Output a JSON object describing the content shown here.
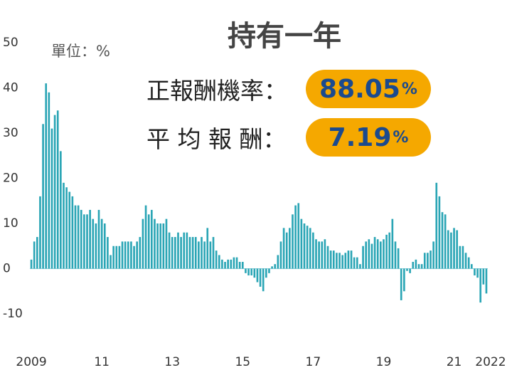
{
  "chart_data": {
    "type": "bar",
    "title": "持有一年",
    "unit_label": "單位：%",
    "annotations": [
      {
        "label": "正報酬機率：",
        "value": "88.05",
        "unit": "%"
      },
      {
        "label": "平 均 報 酬：",
        "value": "7.19",
        "unit": "%"
      }
    ],
    "color": "#2aa5b5",
    "ylim": [
      -10,
      50
    ],
    "yticks": [
      -10,
      0,
      10,
      20,
      30,
      40,
      50
    ],
    "categories": [
      "2009",
      null,
      null,
      null,
      null,
      null,
      null,
      null,
      null,
      null,
      null,
      null,
      null,
      null,
      null,
      null,
      null,
      null,
      null,
      null,
      null,
      null,
      null,
      null,
      "11",
      null,
      null,
      null,
      null,
      null,
      null,
      null,
      null,
      null,
      null,
      null,
      null,
      null,
      null,
      null,
      null,
      null,
      null,
      null,
      null,
      null,
      null,
      null,
      "13",
      null,
      null,
      null,
      null,
      null,
      null,
      null,
      null,
      null,
      null,
      null,
      null,
      null,
      null,
      null,
      null,
      null,
      null,
      null,
      null,
      null,
      null,
      null,
      "15",
      null,
      null,
      null,
      null,
      null,
      null,
      null,
      null,
      null,
      null,
      null,
      null,
      null,
      null,
      null,
      null,
      null,
      null,
      null,
      null,
      null,
      null,
      null,
      "17",
      null,
      null,
      null,
      null,
      null,
      null,
      null,
      null,
      null,
      null,
      null,
      null,
      null,
      null,
      null,
      null,
      null,
      null,
      null,
      null,
      null,
      null,
      null,
      "19",
      null,
      null,
      null,
      null,
      null,
      null,
      null,
      null,
      null,
      null,
      null,
      null,
      null,
      null,
      null,
      null,
      null,
      null,
      null,
      null,
      null,
      null,
      null,
      "21",
      null,
      null,
      null,
      null,
      null,
      null,
      null,
      null,
      null,
      null,
      "2022"
    ],
    "values": [
      2,
      6,
      7,
      16,
      32,
      41,
      39,
      31,
      34,
      35,
      26,
      19,
      18,
      17,
      16,
      14,
      14,
      13,
      12,
      12,
      13,
      11,
      10,
      13,
      11,
      10,
      7,
      3,
      5,
      5,
      5,
      6,
      6,
      6,
      6,
      5,
      6,
      7,
      11,
      14,
      12,
      13,
      11,
      10,
      10,
      10,
      11,
      8,
      7,
      7,
      8,
      7,
      8,
      8,
      7,
      7,
      7,
      6,
      7,
      6,
      9,
      6,
      7,
      4,
      3,
      2,
      1.5,
      2,
      2,
      2.5,
      2.5,
      1.5,
      1.5,
      -1,
      -1.5,
      -1.5,
      -2,
      -3,
      -4,
      -5,
      -2,
      -1,
      0.5,
      1,
      3,
      6,
      9,
      8,
      9,
      12,
      14,
      14.5,
      11,
      10,
      9.5,
      9,
      8,
      6.5,
      6,
      6,
      6.5,
      5,
      4,
      4,
      3.5,
      3.5,
      3,
      3.5,
      4,
      4,
      2.5,
      2.5,
      1,
      5,
      6,
      6.5,
      5.5,
      7,
      6.5,
      6,
      6.5,
      7.5,
      8,
      11,
      6,
      4.5,
      -7,
      -5,
      -0.5,
      -1,
      1.5,
      2,
      1,
      1,
      3.5,
      3.5,
      4,
      6,
      19,
      16,
      12.5,
      12,
      8.5,
      8,
      9,
      8.5,
      5,
      5,
      3.5,
      2.5,
      1,
      -1.5,
      -2,
      -7.5,
      -3.5,
      -5.5
    ]
  }
}
